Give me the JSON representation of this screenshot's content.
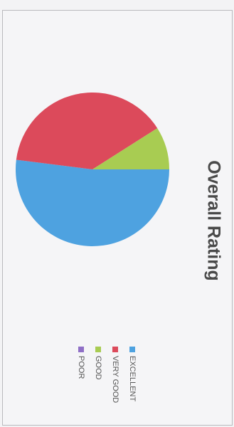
{
  "chart_data": {
    "type": "pie",
    "title": "Overall Rating",
    "legend_position": "left",
    "orientation": "rotated 90 degrees clockwise",
    "slices": [
      {
        "label": "EXCELLENT",
        "value": 52,
        "color": "#4ea2e0"
      },
      {
        "label": "VERY GOOD",
        "value": 39,
        "color": "#dc4a5b"
      },
      {
        "label": "GOOD",
        "value": 9,
        "color": "#a8cc52"
      },
      {
        "label": "POOR",
        "value": 0,
        "color": "#8f6fc6"
      }
    ]
  }
}
